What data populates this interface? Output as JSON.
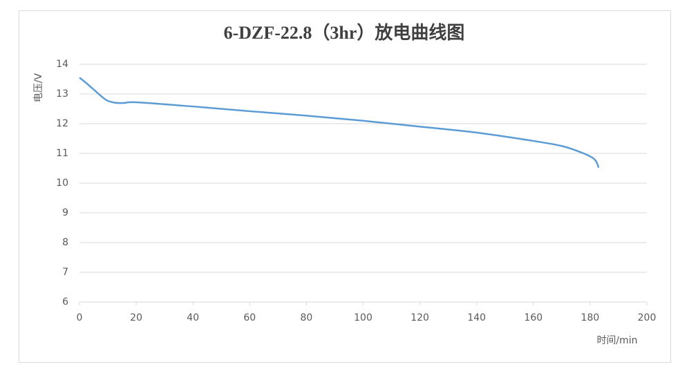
{
  "chart_data": {
    "type": "line",
    "title": "6-DZF-22.8（3hr）放电曲线图",
    "x_label": "时间/min",
    "y_label": "电压/V",
    "x": [
      0,
      2,
      5,
      8,
      10,
      13,
      16,
      20,
      40,
      60,
      80,
      100,
      120,
      140,
      160,
      170,
      175,
      180,
      182,
      183
    ],
    "series": [
      {
        "name": "6-DZF-22.8",
        "color": "#5b9bd5",
        "values": [
          13.55,
          13.4,
          13.15,
          12.9,
          12.77,
          12.7,
          12.7,
          12.72,
          12.58,
          12.42,
          12.27,
          12.1,
          11.9,
          11.7,
          11.42,
          11.25,
          11.1,
          10.9,
          10.75,
          10.52
        ]
      }
    ],
    "xlim": [
      0,
      200
    ],
    "xticks": [
      0,
      20,
      40,
      60,
      80,
      100,
      120,
      140,
      160,
      180,
      200
    ],
    "ylim": [
      6,
      14
    ],
    "yticks": [
      6,
      7,
      8,
      9,
      10,
      11,
      12,
      13,
      14
    ],
    "grid": true
  }
}
